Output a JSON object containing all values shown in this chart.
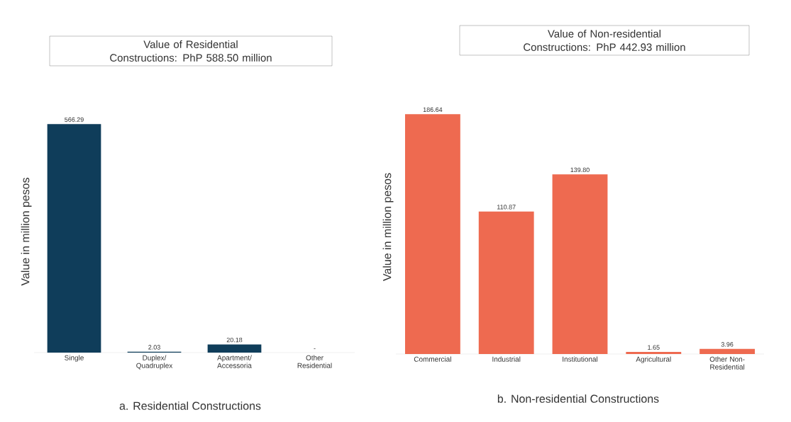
{
  "chart_data": [
    {
      "type": "bar",
      "title": "Value of Residential Constructions: PhP 588.50 million",
      "ylabel": "Value in million pesos",
      "annotations": [
        "a.  Residential Constructions"
      ],
      "categories": [
        "Single",
        "Duplex/ Quadruplex",
        "Apartment/ Accessoria",
        "Other Residential"
      ],
      "values": [
        566.29,
        2.03,
        20.18,
        0
      ],
      "value_labels": [
        "566.29",
        "2.03",
        "20.18",
        "-"
      ],
      "color": "#0f3d5a",
      "tick_labels": "x"
    },
    {
      "type": "bar",
      "title": "Value of Non-residential Constructions: PhP 442.93 million",
      "ylabel": "Value in million pesos",
      "annotations": [
        "b.  Non-residential Constructions"
      ],
      "categories": [
        "Commercial",
        "Industrial",
        "Institutional",
        "Agricultural",
        "Other Non-Residential"
      ],
      "values": [
        186.64,
        110.87,
        139.8,
        1.65,
        3.96
      ],
      "value_labels": [
        "186.64",
        "110.87",
        "139.80",
        "1.65",
        "3.96"
      ],
      "color": "#ee6a50",
      "tick_labels": "x"
    }
  ]
}
